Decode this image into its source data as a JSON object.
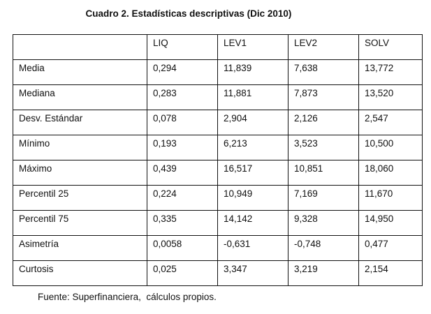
{
  "title": "Cuadro 2. Estadísticas descriptivas (Dic 2010)",
  "table": {
    "headers": [
      "",
      "LIQ",
      "LEV1",
      "LEV2",
      "SOLV"
    ],
    "rows": [
      [
        "Media",
        "0,294",
        "11,839",
        "7,638",
        "13,772"
      ],
      [
        "Mediana",
        "0,283",
        "11,881",
        "7,873",
        "13,520"
      ],
      [
        "Desv. Estándar",
        "0,078",
        "2,904",
        "2,126",
        "2,547"
      ],
      [
        "Mínimo",
        "0,193",
        "6,213",
        "3,523",
        "10,500"
      ],
      [
        "Máximo",
        "0,439",
        "16,517",
        "10,851",
        "18,060"
      ],
      [
        "Percentil 25",
        "0,224",
        "10,949",
        "7,169",
        "11,670"
      ],
      [
        "Percentil 75",
        "0,335",
        "14,142",
        "9,328",
        "14,950"
      ],
      [
        "Asimetría",
        "0,0058",
        "-0,631",
        "-0,748",
        "0,477"
      ],
      [
        "Curtosis",
        "0,025",
        "3,347",
        "3,219",
        "2,154"
      ]
    ]
  },
  "footer": "Fuente: Superfinanciera,  cálculos propios."
}
